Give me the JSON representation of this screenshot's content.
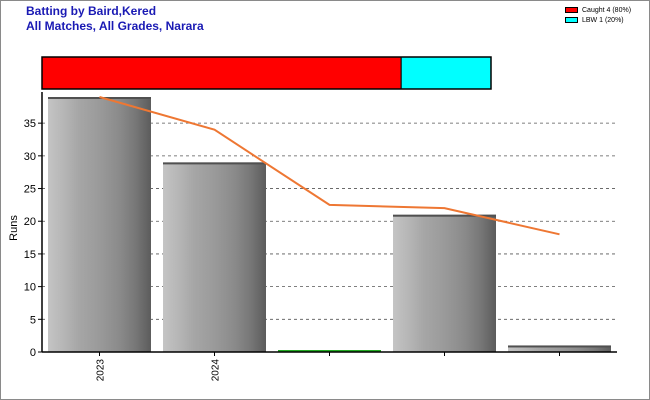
{
  "title_line1": "Batting by Baird,Kered",
  "title_line2": "All Matches, All Grades, Narara",
  "legend": [
    {
      "label": "Caught 4 (80%)",
      "color": "#ff0000"
    },
    {
      "label": "LBW 1 (20%)",
      "color": "#00ffff"
    }
  ],
  "dismissals": [
    {
      "label": "Caught",
      "count": 4,
      "percent": 80,
      "color": "#ff0000"
    },
    {
      "label": "LBW",
      "count": 1,
      "percent": 20,
      "color": "#00ffff"
    }
  ],
  "chart_data": {
    "type": "bar",
    "ylabel": "Runs",
    "xlabel": "",
    "ylim": [
      0,
      39
    ],
    "yticks": [
      0,
      5,
      10,
      15,
      20,
      25,
      30,
      35
    ],
    "grid": "horizontal dashed",
    "categories": [
      "2023",
      "2024",
      "",
      "",
      ""
    ],
    "values": [
      39,
      29,
      0.2,
      21,
      1
    ],
    "trend_line": {
      "color": "#ee7733",
      "points": [
        {
          "i": 0.5,
          "y": 39
        },
        {
          "i": 1.5,
          "y": 34
        },
        {
          "i": 2.5,
          "y": 22.5
        },
        {
          "i": 3.5,
          "y": 22
        },
        {
          "i": 4.5,
          "y": 18
        }
      ]
    }
  }
}
